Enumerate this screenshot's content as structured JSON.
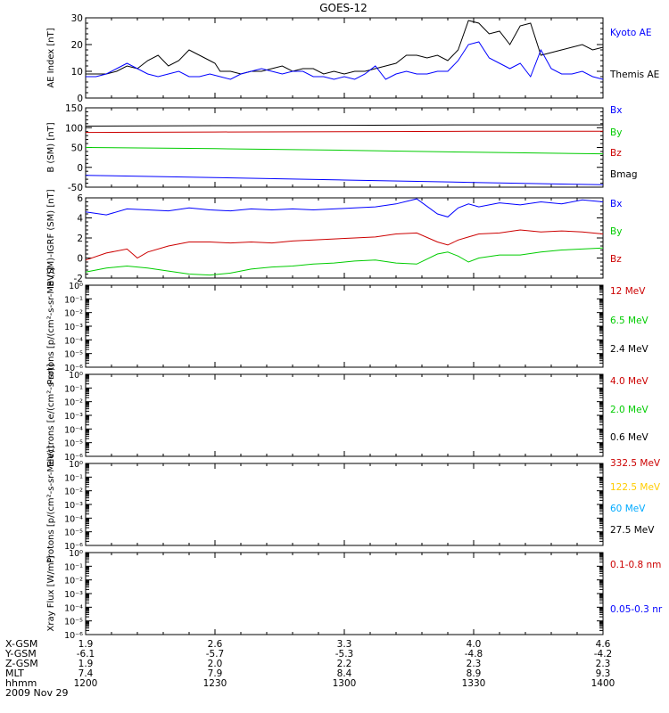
{
  "title": "GOES-12",
  "date_label": "2009 Nov 29",
  "colors": {
    "blue": "#0000ff",
    "green": "#00cc00",
    "red": "#cc0000",
    "black": "#000000",
    "yellow": "#ffcc00",
    "cyan": "#00aaff"
  },
  "ephemeris": {
    "row_labels": [
      "X-GSM",
      "Y-GSM",
      "Z-GSM",
      "MLT",
      "hhmm"
    ],
    "columns": [
      [
        "1.9",
        "-6.1",
        "1.9",
        "7.4",
        "1200"
      ],
      [
        "2.6",
        "-5.7",
        "2.0",
        "7.9",
        "1230"
      ],
      [
        "3.3",
        "-5.3",
        "2.2",
        "8.4",
        "1300"
      ],
      [
        "4.0",
        "-4.8",
        "2.3",
        "8.9",
        "1330"
      ],
      [
        "4.6",
        "-4.2",
        "2.3",
        "9.3",
        "1400"
      ]
    ]
  },
  "chart_data": [
    {
      "type": "line",
      "ylabel": "AE Index [nT]",
      "ylim": [
        0,
        30
      ],
      "yticks": [
        "0",
        "10",
        "20",
        "30"
      ],
      "legend": [
        {
          "name": "Kyoto AE",
          "color": "#0000ff"
        },
        {
          "name": "Themis AE",
          "color": "#000000"
        }
      ],
      "series": [
        {
          "name": "Themis AE",
          "color": "#000000",
          "x": [
            0,
            4,
            8,
            12,
            16,
            20,
            24,
            28,
            32,
            36,
            40,
            44,
            48,
            50,
            52,
            56,
            60,
            64,
            68,
            72,
            76,
            80,
            84,
            88,
            92,
            96,
            100,
            104,
            108,
            112,
            116,
            120,
            124,
            128,
            132,
            136,
            140,
            144,
            148,
            152,
            156,
            160,
            164,
            168,
            172,
            176,
            180,
            184,
            188,
            192,
            196,
            200
          ],
          "y": [
            9,
            9,
            9,
            10,
            12,
            11,
            14,
            16,
            12,
            14,
            18,
            16,
            14,
            13,
            10,
            10,
            9,
            10,
            10,
            11,
            12,
            10,
            11,
            11,
            9,
            10,
            9,
            10,
            10,
            11,
            12,
            13,
            16,
            16,
            15,
            16,
            14,
            18,
            29,
            28,
            24,
            25,
            20,
            27,
            28,
            16,
            17,
            18,
            19,
            20,
            18,
            19
          ]
        },
        {
          "name": "Kyoto AE",
          "color": "#0000ff",
          "x": [
            0,
            4,
            8,
            12,
            16,
            20,
            24,
            28,
            32,
            36,
            40,
            44,
            48,
            52,
            56,
            60,
            64,
            68,
            72,
            76,
            80,
            84,
            88,
            92,
            96,
            100,
            104,
            108,
            112,
            116,
            120,
            124,
            128,
            132,
            136,
            140,
            144,
            148,
            152,
            156,
            160,
            164,
            168,
            172,
            176,
            180,
            184,
            188,
            192,
            196,
            200
          ],
          "y": [
            8,
            8,
            9,
            11,
            13,
            11,
            9,
            8,
            9,
            10,
            8,
            8,
            9,
            8,
            7,
            9,
            10,
            11,
            10,
            9,
            10,
            10,
            8,
            8,
            7,
            8,
            7,
            9,
            12,
            7,
            9,
            10,
            9,
            9,
            10,
            10,
            14,
            20,
            21,
            15,
            13,
            11,
            13,
            8,
            18,
            11,
            9,
            9,
            10,
            8,
            7
          ]
        }
      ]
    },
    {
      "type": "line",
      "ylabel": "B (SM) [nT]",
      "ylim": [
        -50,
        150
      ],
      "yticks": [
        "-50",
        "0",
        "50",
        "100",
        "150"
      ],
      "legend": [
        {
          "name": "Bx",
          "color": "#0000ff"
        },
        {
          "name": "By",
          "color": "#00cc00"
        },
        {
          "name": "Bz",
          "color": "#cc0000"
        },
        {
          "name": "Bmag",
          "color": "#000000"
        }
      ],
      "series": [
        {
          "name": "Bmag",
          "color": "#000000",
          "x": [
            0,
            50,
            100,
            150,
            200
          ],
          "y": [
            104,
            105,
            106,
            107,
            107
          ]
        },
        {
          "name": "Bz",
          "color": "#cc0000",
          "x": [
            0,
            50,
            100,
            150,
            200
          ],
          "y": [
            88,
            89,
            90,
            91,
            91
          ]
        },
        {
          "name": "By",
          "color": "#00cc00",
          "x": [
            0,
            50,
            100,
            150,
            200
          ],
          "y": [
            50,
            47,
            43,
            38,
            34
          ]
        },
        {
          "name": "Bx",
          "color": "#0000ff",
          "x": [
            0,
            50,
            100,
            150,
            200
          ],
          "y": [
            -20,
            -26,
            -32,
            -38,
            -44
          ]
        }
      ]
    },
    {
      "type": "line",
      "ylabel": "B (SM)-IGRF (SM) [nT]",
      "ylim": [
        -2,
        6
      ],
      "yticks": [
        "-2",
        "0",
        "2",
        "4",
        "6"
      ],
      "legend": [
        {
          "name": "Bx",
          "color": "#0000ff"
        },
        {
          "name": "By",
          "color": "#00cc00"
        },
        {
          "name": "Bz",
          "color": "#cc0000"
        }
      ],
      "series": [
        {
          "name": "Bx",
          "color": "#0000ff",
          "x": [
            0,
            8,
            16,
            24,
            32,
            40,
            48,
            56,
            64,
            72,
            80,
            88,
            96,
            104,
            112,
            120,
            128,
            136,
            140,
            144,
            148,
            152,
            160,
            168,
            176,
            184,
            192,
            200
          ],
          "y": [
            4.6,
            4.3,
            4.9,
            4.8,
            4.7,
            5.0,
            4.8,
            4.7,
            4.9,
            4.8,
            4.9,
            4.8,
            4.9,
            5.0,
            5.1,
            5.4,
            5.9,
            4.4,
            4.1,
            5.0,
            5.4,
            5.1,
            5.5,
            5.3,
            5.6,
            5.4,
            5.8,
            5.6
          ]
        },
        {
          "name": "Bz",
          "color": "#cc0000",
          "x": [
            0,
            8,
            16,
            20,
            24,
            32,
            40,
            48,
            56,
            64,
            72,
            80,
            88,
            96,
            104,
            112,
            120,
            128,
            136,
            140,
            144,
            148,
            152,
            160,
            168,
            176,
            184,
            192,
            200
          ],
          "y": [
            -0.2,
            0.5,
            0.9,
            0.0,
            0.6,
            1.2,
            1.6,
            1.6,
            1.5,
            1.6,
            1.5,
            1.7,
            1.8,
            1.9,
            2.0,
            2.1,
            2.4,
            2.5,
            1.6,
            1.3,
            1.8,
            2.1,
            2.4,
            2.5,
            2.8,
            2.6,
            2.7,
            2.6,
            2.4
          ]
        },
        {
          "name": "By",
          "color": "#00cc00",
          "x": [
            0,
            8,
            16,
            24,
            32,
            40,
            48,
            56,
            64,
            72,
            80,
            88,
            96,
            104,
            112,
            120,
            128,
            136,
            140,
            144,
            148,
            152,
            160,
            168,
            176,
            184,
            192,
            200
          ],
          "y": [
            -1.4,
            -1.0,
            -0.8,
            -1.0,
            -1.3,
            -1.6,
            -1.7,
            -1.5,
            -1.1,
            -0.9,
            -0.8,
            -0.6,
            -0.5,
            -0.3,
            -0.2,
            -0.5,
            -0.6,
            0.4,
            0.6,
            0.2,
            -0.4,
            0.0,
            0.3,
            0.3,
            0.6,
            0.8,
            0.9,
            1.0
          ]
        }
      ]
    },
    {
      "type": "line",
      "ylabel": "Protons [p/(cm²-s-sr-MeV)]",
      "yscale": "log",
      "yticks": [
        "10⁻⁶",
        "10⁻⁵",
        "10⁻⁴",
        "10⁻³",
        "10⁻²",
        "10⁻¹",
        "10⁰"
      ],
      "legend": [
        {
          "name": "12 MeV",
          "color": "#cc0000"
        },
        {
          "name": "6.5 MeV",
          "color": "#00cc00"
        },
        {
          "name": "2.4 MeV",
          "color": "#000000"
        }
      ],
      "series": []
    },
    {
      "type": "line",
      "ylabel": "Electrons [e/(cm²-s-sr)]",
      "yscale": "log",
      "yticks": [
        "10⁻⁶",
        "10⁻⁵",
        "10⁻⁴",
        "10⁻³",
        "10⁻²",
        "10⁻¹",
        "10⁰"
      ],
      "legend": [
        {
          "name": "4.0 MeV",
          "color": "#cc0000"
        },
        {
          "name": "2.0 MeV",
          "color": "#00cc00"
        },
        {
          "name": "0.6 MeV",
          "color": "#000000"
        }
      ],
      "series": []
    },
    {
      "type": "line",
      "ylabel": "Protons [p/(cm²-s-sr-MeV)]",
      "yscale": "log",
      "yticks": [
        "10⁻⁶",
        "10⁻⁵",
        "10⁻⁴",
        "10⁻³",
        "10⁻²",
        "10⁻¹",
        "10⁰"
      ],
      "legend": [
        {
          "name": "332.5 MeV",
          "color": "#cc0000"
        },
        {
          "name": "122.5 MeV",
          "color": "#ffcc00"
        },
        {
          "name": "60 MeV",
          "color": "#00aaff"
        },
        {
          "name": "27.5 MeV",
          "color": "#000000"
        }
      ],
      "series": []
    },
    {
      "type": "line",
      "ylabel": "Xray Flux [W/m²]",
      "yscale": "log",
      "yticks": [
        "10⁻⁶",
        "10⁻⁵",
        "10⁻⁴",
        "10⁻³",
        "10⁻²",
        "10⁻¹",
        "10⁰"
      ],
      "legend": [
        {
          "name": "0.1-0.8 nm",
          "color": "#cc0000"
        },
        {
          "name": "0.05-0.3 nr",
          "color": "#0000ff"
        }
      ],
      "series": []
    }
  ]
}
